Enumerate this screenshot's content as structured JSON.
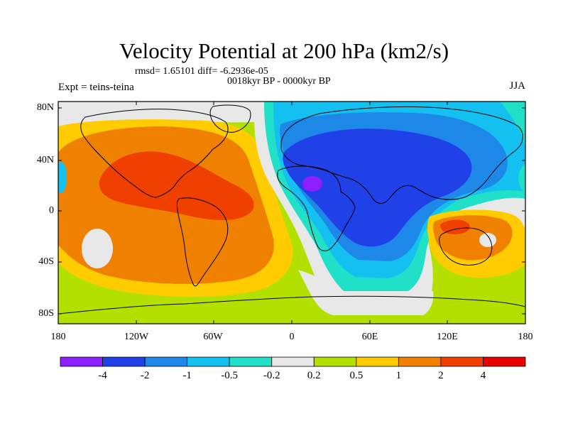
{
  "title": "Velocity Potential at 200 hPa (km2/s)",
  "stats": "rmsd= 1.65101 diff= -6.2936e-05",
  "experiment": "Expt = teins-teina",
  "period": "0018kyr BP - 0000kyr BP",
  "season": "JJA",
  "lat_labels": [
    "80N",
    "40N",
    "0",
    "40S",
    "80S"
  ],
  "lon_labels": [
    "180",
    "120W",
    "60W",
    "0",
    "60E",
    "120E",
    "180"
  ],
  "colorbar": {
    "labels": [
      "-4",
      "-2",
      "-1",
      "-0.5",
      "-0.2",
      "0.2",
      "0.5",
      "1",
      "2",
      "4"
    ],
    "colors": [
      "#8c1eff",
      "#2040e8",
      "#1e88e8",
      "#14c0f0",
      "#20e0c8",
      "#e8e8e8",
      "#b4e000",
      "#ffcc00",
      "#f08000",
      "#f04000",
      "#e80000"
    ]
  },
  "fill_colors": {
    "background_level": "#b4e000",
    "positive_1": "#ffcc00",
    "positive_2": "#f08000",
    "positive_3": "#f04000",
    "near_zero": "#e8e8e8",
    "negative_1": "#20e0c8",
    "negative_2": "#14c0f0",
    "negative_3": "#1e88e8",
    "negative_4": "#2040e8",
    "negative_5": "#8c1eff"
  }
}
